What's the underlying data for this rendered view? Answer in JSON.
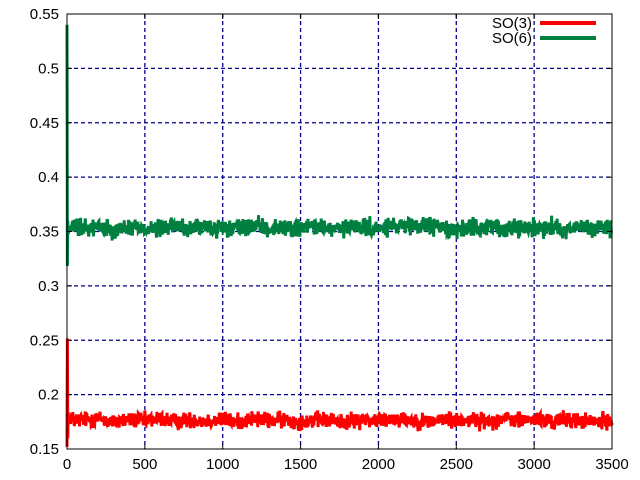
{
  "chart_data": {
    "type": "line",
    "title": "",
    "xlabel": "",
    "ylabel": "",
    "xlim": [
      0,
      3500
    ],
    "ylim": [
      0.15,
      0.55
    ],
    "xticks": [
      0,
      500,
      1000,
      1500,
      2000,
      2500,
      3000,
      3500
    ],
    "xtick_labels": [
      "0",
      "500",
      "1000",
      "1500",
      "2000",
      "2500",
      "3000",
      "3500"
    ],
    "yticks": [
      0.15,
      0.2,
      0.25,
      0.3,
      0.35,
      0.4,
      0.45,
      0.5,
      0.55
    ],
    "ytick_labels": [
      "0.15",
      "0.2",
      "0.25",
      "0.3",
      "0.35",
      "0.4",
      "0.45",
      "0.5",
      "0.55"
    ],
    "grid": true,
    "legend_position": "top-right",
    "series": [
      {
        "name": "SO(3)",
        "color": "#ff0000",
        "x": [
          0,
          2,
          5,
          8,
          12,
          20,
          50,
          100,
          200,
          300,
          400,
          500,
          600,
          700,
          800,
          900,
          1000,
          1100,
          1200,
          1300,
          1400,
          1500,
          1600,
          1700,
          1800,
          1900,
          2000,
          2100,
          2200,
          2300,
          2400,
          2500,
          2600,
          2700,
          2800,
          2900,
          3000,
          3100,
          3200,
          3300,
          3400,
          3500
        ],
        "y": [
          0.152,
          0.27,
          0.16,
          0.185,
          0.175,
          0.18,
          0.176,
          0.177,
          0.178,
          0.175,
          0.177,
          0.176,
          0.178,
          0.175,
          0.177,
          0.176,
          0.177,
          0.175,
          0.178,
          0.176,
          0.177,
          0.175,
          0.177,
          0.176,
          0.175,
          0.177,
          0.176,
          0.178,
          0.177,
          0.175,
          0.177,
          0.176,
          0.177,
          0.175,
          0.178,
          0.176,
          0.177,
          0.175,
          0.177,
          0.176,
          0.175,
          0.176
        ],
        "noise_amplitude": 0.011
      },
      {
        "name": "SO(6)",
        "color": "#008040",
        "x": [
          0,
          2,
          5,
          8,
          12,
          20,
          50,
          100,
          200,
          300,
          400,
          500,
          600,
          700,
          800,
          900,
          1000,
          1100,
          1200,
          1300,
          1400,
          1500,
          1600,
          1700,
          1800,
          1900,
          2000,
          2100,
          2200,
          2300,
          2400,
          2500,
          2600,
          2700,
          2800,
          2900,
          3000,
          3100,
          3200,
          3300,
          3400,
          3500
        ],
        "y": [
          0.54,
          0.31,
          0.36,
          0.345,
          0.355,
          0.352,
          0.354,
          0.353,
          0.355,
          0.352,
          0.354,
          0.353,
          0.352,
          0.355,
          0.353,
          0.354,
          0.352,
          0.353,
          0.355,
          0.352,
          0.354,
          0.353,
          0.355,
          0.352,
          0.353,
          0.354,
          0.352,
          0.355,
          0.353,
          0.356,
          0.354,
          0.352,
          0.353,
          0.355,
          0.352,
          0.354,
          0.353,
          0.355,
          0.352,
          0.354,
          0.353,
          0.353
        ],
        "noise_amplitude": 0.012
      }
    ]
  }
}
